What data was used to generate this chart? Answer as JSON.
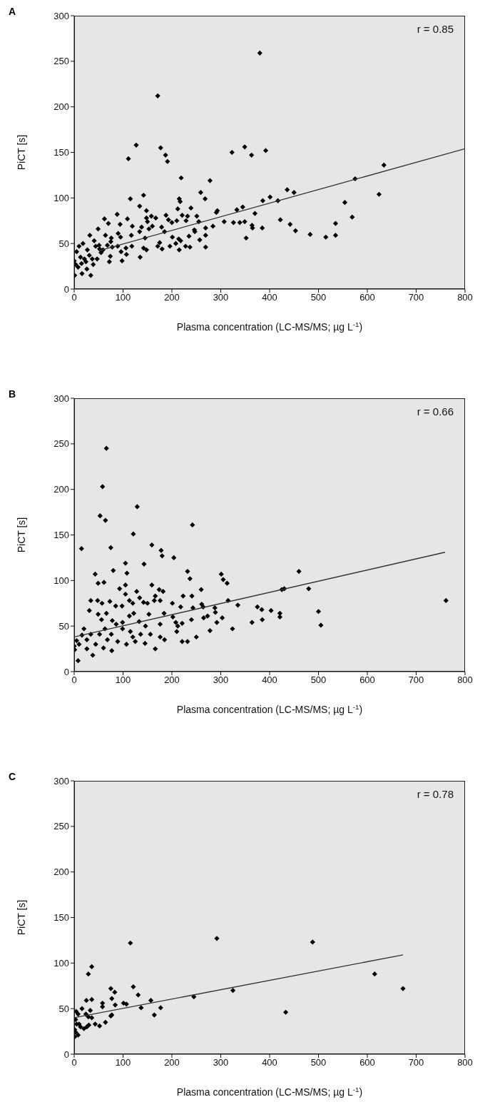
{
  "chart_data": [
    {
      "type": "scatter",
      "title": "A",
      "xlabel": "Plasma concentration (LC-MS/MS; µg L$^{-1}$)",
      "ylabel": "PiCT [s]",
      "annotations": [
        "r = 0.85"
      ],
      "xlim": [
        0,
        800
      ],
      "ylim": [
        0,
        300
      ],
      "xticks": [
        0,
        100,
        200,
        300,
        400,
        500,
        600,
        700,
        800
      ],
      "yticks": [
        0,
        50,
        100,
        150,
        200,
        250,
        300
      ],
      "series": [
        {
          "type": "scatter",
          "marker": "diamond",
          "color": "#000000",
          "x": [
            380,
            171,
            127,
            111,
            177,
            187,
            191,
            323,
            349,
            363,
            392,
            219,
            278,
            634,
            575,
            624,
            554,
            569,
            535,
            535,
            515,
            483,
            453,
            442,
            422,
            436,
            450,
            401,
            417,
            386,
            370,
            385,
            365,
            364,
            352,
            349,
            339,
            326,
            345,
            333,
            307,
            291,
            293,
            284,
            269,
            269,
            269,
            259,
            268,
            251,
            255,
            239,
            232,
            246,
            247,
            235,
            257,
            237,
            228,
            215,
            217,
            212,
            221,
            229,
            210,
            200,
            188,
            193,
            179,
            185,
            201,
            214,
            218,
            208,
            215,
            196,
            180,
            171,
            175,
            167,
            158,
            148,
            148,
            150,
            160,
            153,
            142,
            134,
            138,
            134,
            145,
            142,
            148,
            135,
            115,
            109,
            119,
            117,
            118,
            106,
            107,
            98,
            96,
            88,
            94,
            90,
            95,
            89,
            72,
            74,
            62,
            70,
            49,
            64,
            76,
            75,
            68,
            78,
            59,
            51,
            55,
            32,
            41,
            44,
            47,
            39,
            34,
            16,
            26,
            24,
            10,
            13,
            1,
            3,
            5,
            18,
            27,
            31,
            21,
            8,
            15,
            0,
            37,
            52
          ],
          "values": [
            259,
            212,
            158,
            143,
            155,
            147,
            140,
            150,
            156,
            147,
            152,
            122,
            119,
            136,
            121,
            104,
            95,
            79,
            72,
            59,
            57,
            60,
            64,
            71,
            76,
            109,
            106,
            101,
            97,
            97,
            83,
            67,
            67,
            70,
            56,
            74,
            73,
            73,
            90,
            87,
            74,
            84,
            86,
            69,
            67,
            59,
            46,
            106,
            99,
            80,
            74,
            89,
            80,
            65,
            63,
            58,
            54,
            46,
            47,
            99,
            96,
            88,
            81,
            75,
            75,
            73,
            81,
            76,
            68,
            63,
            57,
            55,
            53,
            50,
            43,
            47,
            44,
            47,
            51,
            78,
            80,
            86,
            78,
            74,
            69,
            66,
            103,
            91,
            68,
            63,
            56,
            45,
            43,
            35,
            99,
            77,
            69,
            59,
            47,
            45,
            38,
            31,
            41,
            82,
            71,
            61,
            57,
            47,
            30,
            36,
            77,
            72,
            66,
            59,
            56,
            52,
            48,
            46,
            43,
            48,
            40,
            59,
            53,
            47,
            33,
            27,
            15,
            17,
            22,
            30,
            47,
            35,
            15,
            27,
            41,
            50,
            43,
            37,
            33,
            24,
            28,
            31,
            33,
            44
          ]
        },
        {
          "type": "line",
          "marker": "none",
          "color": "#333333",
          "x": [
            50,
            800
          ],
          "values": [
            42,
            154
          ]
        }
      ]
    },
    {
      "type": "scatter",
      "title": "B",
      "xlabel": "Plasma concentration (LC-MS/MS; µg L$^{-1}$)",
      "ylabel": "PiCT [s]",
      "annotations": [
        "r = 0.66"
      ],
      "xlim": [
        0,
        800
      ],
      "ylim": [
        0,
        300
      ],
      "xticks": [
        0,
        100,
        200,
        300,
        400,
        500,
        600,
        700,
        800
      ],
      "yticks": [
        0,
        50,
        100,
        150,
        200,
        250,
        300
      ],
      "series": [
        {
          "type": "scatter",
          "marker": "diamond",
          "color": "#000000",
          "x": [
            66,
            58,
            53,
            64,
            129,
            242,
            121,
            15,
            75,
            159,
            178,
            180,
            204,
            105,
            143,
            80,
            108,
            43,
            49,
            61,
            232,
            237,
            301,
            305,
            313,
            460,
            480,
            425,
            430,
            761,
            500,
            505,
            421,
            421,
            403,
            384,
            375,
            385,
            364,
            335,
            315,
            324,
            303,
            292,
            289,
            288,
            278,
            273,
            265,
            264,
            260,
            261,
            250,
            243,
            241,
            240,
            223,
            218,
            221,
            210,
            232,
            221,
            201,
            202,
            208,
            212,
            185,
            176,
            166,
            182,
            174,
            176,
            164,
            166,
            159,
            184,
            176,
            153,
            156,
            145,
            150,
            142,
            134,
            128,
            120,
            113,
            105,
            105,
            93,
            98,
            85,
            73,
            66,
            57,
            48,
            34,
            31,
            20,
            49,
            56,
            78,
            86,
            99,
            113,
            122,
            133,
            136,
            125,
            107,
            77,
            38,
            8,
            1,
            10,
            26,
            44,
            60,
            68,
            89,
            52,
            34,
            26,
            16,
            5,
            115,
            120,
            146,
            99,
            76,
            63,
            0
          ],
          "values": [
            245,
            203,
            171,
            166,
            181,
            161,
            151,
            135,
            136,
            139,
            133,
            127,
            125,
            119,
            118,
            111,
            108,
            107,
            97,
            98,
            110,
            102,
            107,
            101,
            97,
            110,
            91,
            90,
            91,
            78,
            66,
            51,
            64,
            60,
            67,
            68,
            71,
            57,
            54,
            73,
            78,
            47,
            59,
            54,
            65,
            70,
            45,
            61,
            59,
            71,
            90,
            74,
            38,
            70,
            83,
            57,
            83,
            71,
            53,
            44,
            33,
            33,
            75,
            60,
            54,
            50,
            35,
            38,
            25,
            88,
            90,
            78,
            78,
            83,
            95,
            64,
            52,
            63,
            41,
            31,
            75,
            76,
            81,
            88,
            75,
            78,
            85,
            95,
            91,
            72,
            72,
            77,
            64,
            75,
            78,
            78,
            67,
            47,
            63,
            57,
            56,
            52,
            54,
            61,
            64,
            55,
            41,
            33,
            30,
            23,
            18,
            12,
            24,
            30,
            25,
            30,
            26,
            35,
            33,
            41,
            41,
            35,
            40,
            34,
            44,
            38,
            50,
            47,
            41,
            47,
            28
          ]
        },
        {
          "type": "line",
          "marker": "none",
          "color": "#333333",
          "x": [
            0,
            759
          ],
          "values": [
            38,
            131
          ]
        }
      ]
    },
    {
      "type": "scatter",
      "title": "C",
      "xlabel": "Plasma concentration (LC-MS/MS; µg L$^{-1}$)",
      "ylabel": "PiCT [s]",
      "annotations": [
        "r = 0.78"
      ],
      "xlim": [
        0,
        800
      ],
      "ylim": [
        0,
        300
      ],
      "xticks": [
        0,
        100,
        200,
        300,
        400,
        500,
        600,
        700,
        800
      ],
      "yticks": [
        0,
        50,
        100,
        150,
        200,
        250,
        300
      ],
      "series": [
        {
          "type": "scatter",
          "marker": "diamond",
          "color": "#000000",
          "x": [
            115,
            292,
            488,
            36,
            29,
            615,
            673,
            325,
            433,
            245,
            121,
            75,
            83,
            77,
            84,
            131,
            157,
            177,
            164,
            137,
            101,
            107,
            58,
            58,
            25,
            36,
            16,
            33,
            24,
            29,
            36,
            75,
            77,
            64,
            52,
            43,
            30,
            26,
            20,
            13,
            5,
            4,
            8,
            3,
            1,
            8,
            1,
            3,
            10
          ],
          "values": [
            122,
            127,
            123,
            96,
            88,
            88,
            72,
            70,
            46,
            63,
            74,
            72,
            68,
            61,
            54,
            65,
            59,
            51,
            43,
            51,
            56,
            55,
            56,
            52,
            59,
            60,
            50,
            48,
            44,
            41,
            40,
            42,
            43,
            35,
            31,
            33,
            32,
            30,
            28,
            30,
            33,
            47,
            44,
            38,
            27,
            21,
            19,
            24,
            33
          ]
        },
        {
          "type": "line",
          "marker": "none",
          "color": "#333333",
          "x": [
            0,
            673
          ],
          "values": [
            40,
            109
          ]
        }
      ]
    }
  ]
}
